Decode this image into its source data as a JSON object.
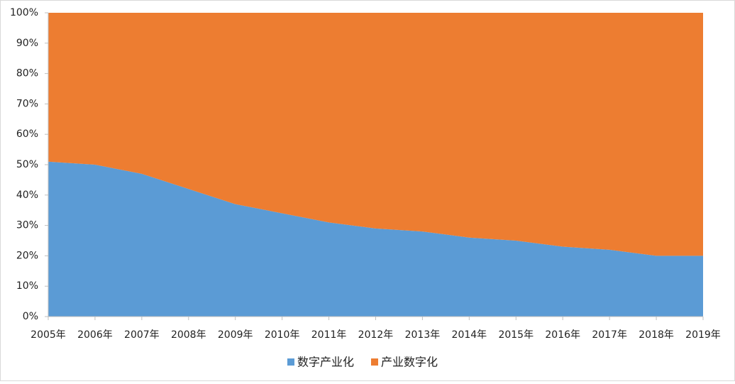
{
  "chart_data": {
    "type": "stacked_area",
    "categories": [
      "2005年",
      "2006年",
      "2007年",
      "2008年",
      "2009年",
      "2010年",
      "2011年",
      "2012年",
      "2013年",
      "2014年",
      "2015年",
      "2016年",
      "2017年",
      "2018年",
      "2019年"
    ],
    "series": [
      {
        "name": "数字产业化",
        "color": "#5b9bd5",
        "values": [
          51,
          50,
          47,
          42,
          37,
          34,
          31,
          29,
          28,
          26,
          25,
          23,
          22,
          20,
          20
        ]
      },
      {
        "name": "产业数字化",
        "color": "#ed7d31",
        "values": [
          49,
          50,
          53,
          58,
          63,
          66,
          69,
          71,
          72,
          74,
          75,
          77,
          78,
          80,
          80
        ]
      }
    ],
    "ylim": [
      0,
      100
    ],
    "yticks": [
      {
        "value": 0,
        "label": "0%"
      },
      {
        "value": 10,
        "label": "10%"
      },
      {
        "value": 20,
        "label": "20%"
      },
      {
        "value": 30,
        "label": "30%"
      },
      {
        "value": 40,
        "label": "40%"
      },
      {
        "value": 50,
        "label": "50%"
      },
      {
        "value": 60,
        "label": "60%"
      },
      {
        "value": 70,
        "label": "70%"
      },
      {
        "value": 80,
        "label": "80%"
      },
      {
        "value": 90,
        "label": "90%"
      },
      {
        "value": 100,
        "label": "100%"
      }
    ],
    "legend": "bottom"
  }
}
